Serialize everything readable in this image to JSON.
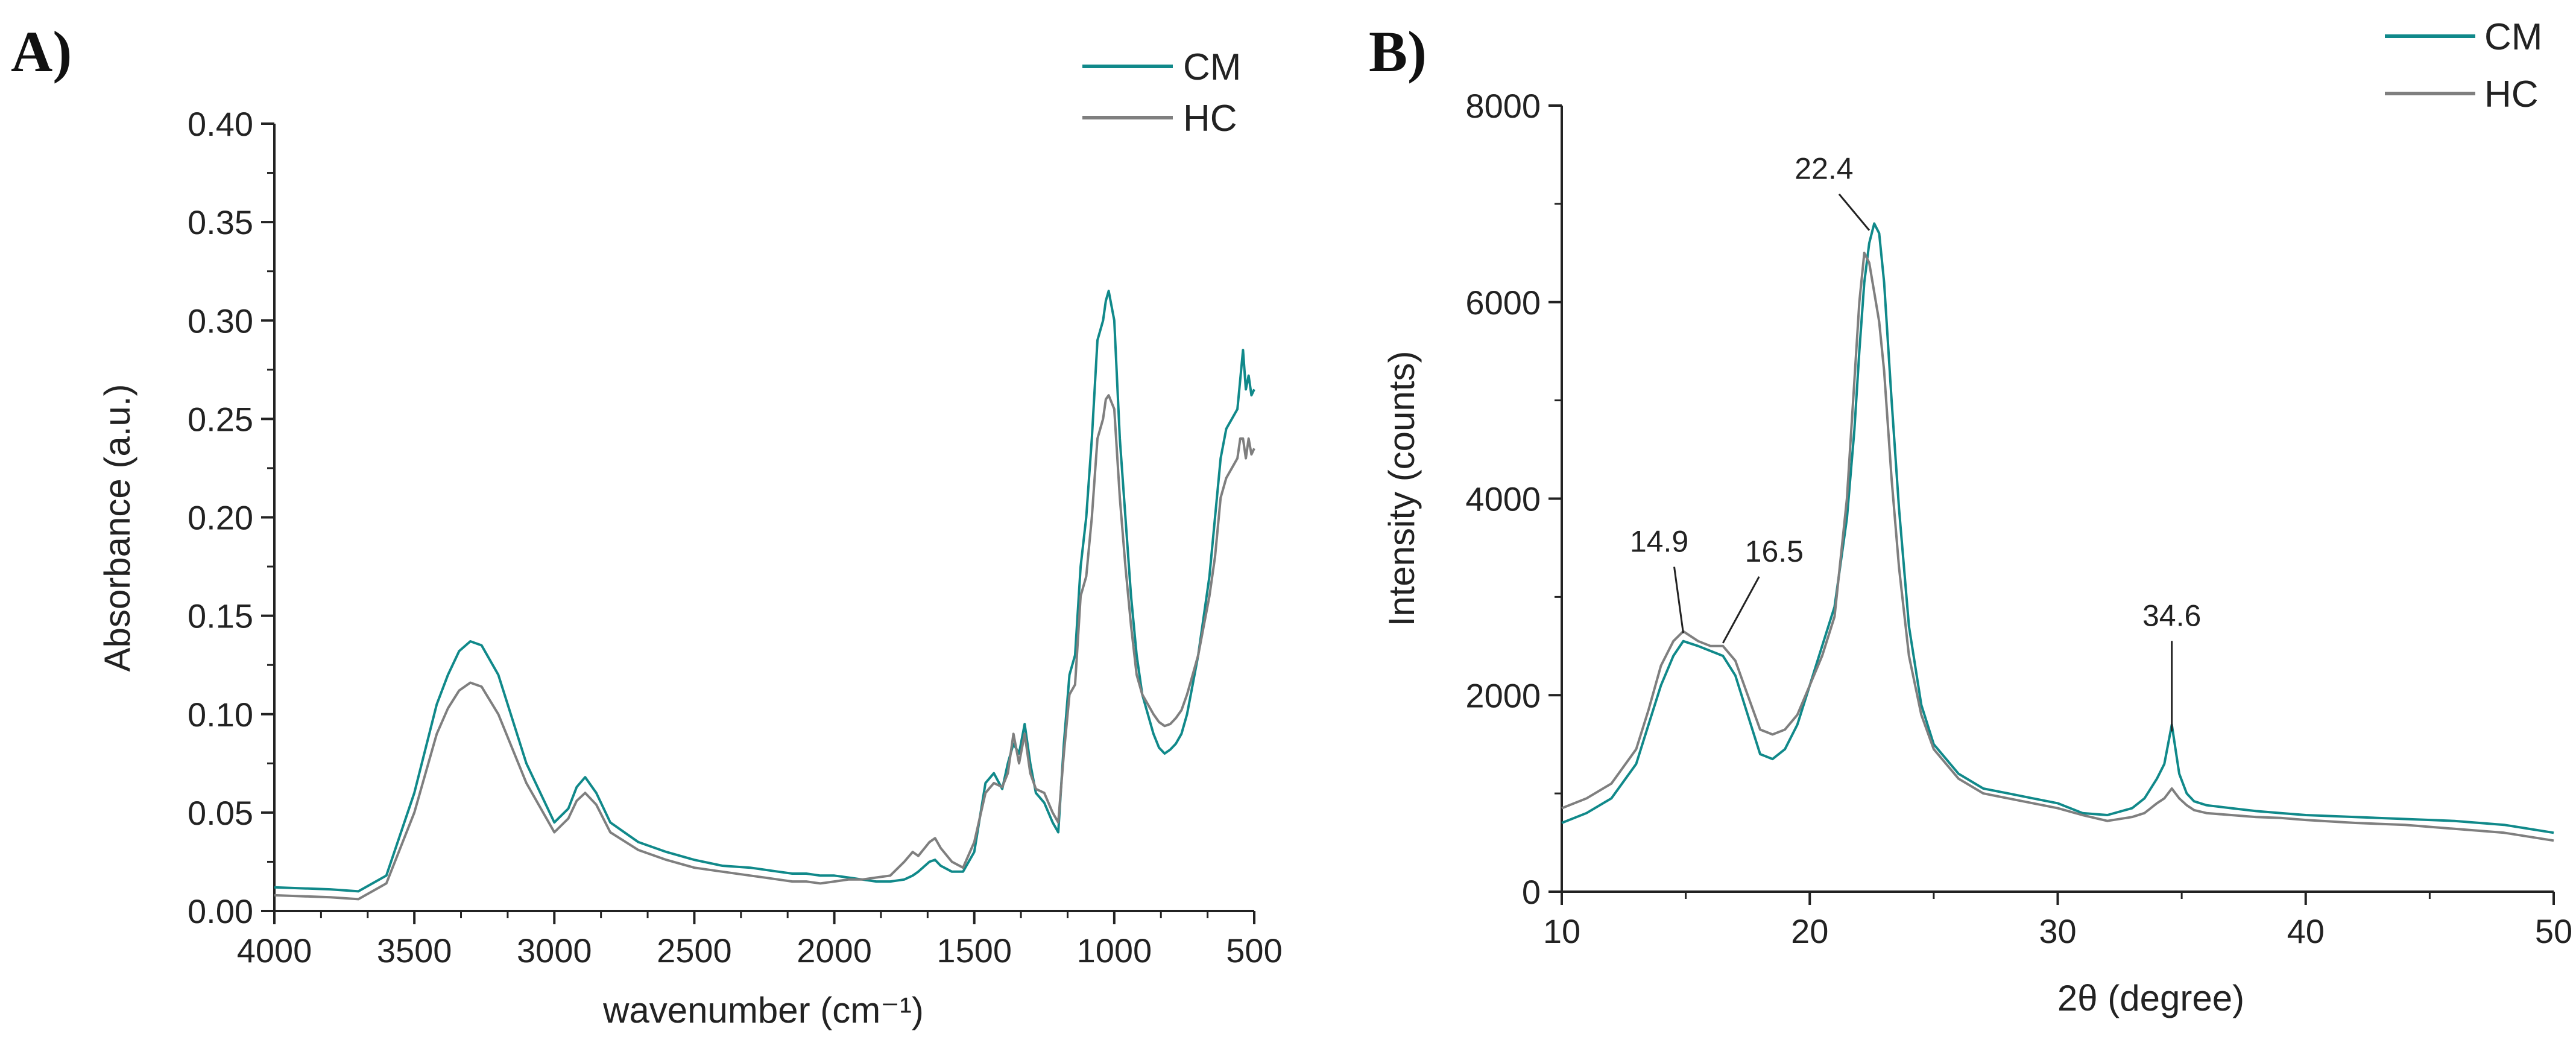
{
  "figure": {
    "panels": [
      "A)",
      "B)"
    ]
  },
  "colors": {
    "CM": "#10898a",
    "HC": "#7f7f7f",
    "axis": "#222222"
  },
  "chart_data": [
    {
      "type": "line",
      "panel_label": "A)",
      "title": "",
      "xlabel": "wavenumber (cm⁻¹)",
      "ylabel": "Absorbance (a.u.)",
      "xlim": [
        4000,
        500
      ],
      "ylim": [
        0,
        0.4
      ],
      "x_reversed": true,
      "xticks": [
        4000,
        3500,
        3000,
        2500,
        2000,
        1500,
        1000,
        500
      ],
      "xtick_labels": [
        "4000",
        "3500",
        "3000",
        "2500",
        "2000",
        "1500",
        "1000",
        "500"
      ],
      "yticks": [
        0,
        0.05,
        0.1,
        0.15,
        0.2,
        0.25,
        0.3,
        0.35,
        0.4
      ],
      "ytick_labels": [
        "0.00",
        "0.05",
        "0.10",
        "0.15",
        "0.20",
        "0.25",
        "0.30",
        "0.35",
        "0.40"
      ],
      "legend": {
        "position": "top-right",
        "entries": [
          "CM",
          "HC"
        ]
      },
      "series": [
        {
          "name": "CM",
          "x": [
            4000,
            3800,
            3700,
            3600,
            3500,
            3420,
            3380,
            3340,
            3300,
            3260,
            3200,
            3100,
            3000,
            2950,
            2920,
            2890,
            2850,
            2800,
            2700,
            2600,
            2500,
            2400,
            2300,
            2200,
            2150,
            2100,
            2050,
            2000,
            1950,
            1900,
            1850,
            1800,
            1750,
            1720,
            1700,
            1660,
            1640,
            1620,
            1580,
            1540,
            1500,
            1460,
            1430,
            1400,
            1380,
            1360,
            1340,
            1320,
            1300,
            1280,
            1250,
            1220,
            1200,
            1180,
            1160,
            1140,
            1120,
            1100,
            1080,
            1060,
            1040,
            1030,
            1020,
            1000,
            980,
            960,
            940,
            920,
            900,
            880,
            860,
            840,
            820,
            800,
            780,
            760,
            740,
            720,
            700,
            680,
            660,
            640,
            620,
            600,
            580,
            560,
            550,
            540,
            530,
            520,
            510,
            500
          ],
          "y": [
            0.012,
            0.011,
            0.01,
            0.018,
            0.06,
            0.105,
            0.12,
            0.132,
            0.137,
            0.135,
            0.12,
            0.075,
            0.045,
            0.052,
            0.063,
            0.068,
            0.06,
            0.045,
            0.035,
            0.03,
            0.026,
            0.023,
            0.022,
            0.02,
            0.019,
            0.019,
            0.018,
            0.018,
            0.017,
            0.016,
            0.015,
            0.015,
            0.016,
            0.018,
            0.02,
            0.025,
            0.026,
            0.023,
            0.02,
            0.02,
            0.03,
            0.065,
            0.07,
            0.062,
            0.075,
            0.085,
            0.08,
            0.095,
            0.075,
            0.06,
            0.055,
            0.045,
            0.04,
            0.085,
            0.12,
            0.13,
            0.175,
            0.2,
            0.24,
            0.29,
            0.3,
            0.31,
            0.315,
            0.3,
            0.24,
            0.2,
            0.16,
            0.13,
            0.11,
            0.1,
            0.09,
            0.083,
            0.08,
            0.082,
            0.085,
            0.09,
            0.1,
            0.115,
            0.13,
            0.15,
            0.17,
            0.2,
            0.23,
            0.245,
            0.25,
            0.255,
            0.27,
            0.285,
            0.265,
            0.272,
            0.262,
            0.265
          ]
        },
        {
          "name": "HC",
          "x": [
            4000,
            3800,
            3700,
            3600,
            3500,
            3420,
            3380,
            3340,
            3300,
            3260,
            3200,
            3100,
            3000,
            2950,
            2920,
            2890,
            2850,
            2800,
            2700,
            2600,
            2500,
            2400,
            2300,
            2200,
            2150,
            2100,
            2050,
            2000,
            1950,
            1900,
            1850,
            1800,
            1750,
            1720,
            1700,
            1660,
            1640,
            1620,
            1580,
            1540,
            1500,
            1460,
            1430,
            1400,
            1380,
            1360,
            1340,
            1320,
            1300,
            1280,
            1250,
            1220,
            1200,
            1180,
            1160,
            1140,
            1120,
            1100,
            1080,
            1060,
            1040,
            1030,
            1020,
            1000,
            980,
            960,
            940,
            920,
            900,
            880,
            860,
            840,
            820,
            800,
            780,
            760,
            740,
            720,
            700,
            680,
            660,
            640,
            620,
            600,
            580,
            560,
            550,
            540,
            530,
            520,
            510,
            500
          ],
          "y": [
            0.008,
            0.007,
            0.006,
            0.014,
            0.05,
            0.09,
            0.103,
            0.112,
            0.116,
            0.114,
            0.1,
            0.065,
            0.04,
            0.047,
            0.056,
            0.06,
            0.054,
            0.04,
            0.031,
            0.026,
            0.022,
            0.02,
            0.018,
            0.016,
            0.015,
            0.015,
            0.014,
            0.015,
            0.016,
            0.016,
            0.017,
            0.018,
            0.025,
            0.03,
            0.028,
            0.035,
            0.037,
            0.032,
            0.025,
            0.022,
            0.035,
            0.06,
            0.065,
            0.063,
            0.07,
            0.09,
            0.075,
            0.09,
            0.07,
            0.062,
            0.06,
            0.05,
            0.045,
            0.08,
            0.11,
            0.115,
            0.16,
            0.17,
            0.2,
            0.24,
            0.25,
            0.26,
            0.262,
            0.255,
            0.21,
            0.175,
            0.145,
            0.12,
            0.11,
            0.105,
            0.1,
            0.096,
            0.094,
            0.095,
            0.098,
            0.102,
            0.11,
            0.12,
            0.13,
            0.145,
            0.16,
            0.18,
            0.21,
            0.22,
            0.225,
            0.23,
            0.24,
            0.24,
            0.23,
            0.24,
            0.232,
            0.235
          ]
        }
      ]
    },
    {
      "type": "line",
      "panel_label": "B)",
      "title": "",
      "xlabel": "2θ (degree)",
      "ylabel": "Intensity (counts)",
      "xlim": [
        10,
        50
      ],
      "ylim": [
        0,
        8000
      ],
      "x_reversed": false,
      "xticks": [
        10,
        20,
        30,
        40,
        50
      ],
      "xtick_labels": [
        "10",
        "20",
        "30",
        "40",
        "50"
      ],
      "yticks": [
        0,
        2000,
        4000,
        6000,
        8000
      ],
      "ytick_labels": [
        "0",
        "2000",
        "4000",
        "6000",
        "8000"
      ],
      "legend": {
        "position": "top-right",
        "entries": [
          "CM",
          "HC"
        ]
      },
      "annotations": [
        {
          "text": "14.9",
          "x": 14.9,
          "y": 2600
        },
        {
          "text": "16.5",
          "x": 16.5,
          "y": 2500
        },
        {
          "text": "22.4",
          "x": 22.4,
          "y": 6700
        },
        {
          "text": "34.6",
          "x": 34.6,
          "y": 1600
        }
      ],
      "series": [
        {
          "name": "CM",
          "x": [
            10,
            11,
            12,
            13,
            13.5,
            14,
            14.5,
            14.9,
            15.5,
            16,
            16.5,
            17,
            17.5,
            18,
            18.5,
            19,
            19.5,
            20,
            20.5,
            21,
            21.5,
            21.8,
            22,
            22.2,
            22.4,
            22.6,
            22.8,
            23,
            23.3,
            23.6,
            24,
            24.5,
            25,
            26,
            27,
            28,
            29,
            30,
            31,
            32,
            33,
            33.5,
            34,
            34.3,
            34.6,
            34.9,
            35.2,
            35.5,
            36,
            37,
            38,
            39,
            40,
            42,
            44,
            46,
            48,
            50
          ],
          "y": [
            700,
            800,
            950,
            1300,
            1700,
            2100,
            2400,
            2550,
            2500,
            2450,
            2400,
            2200,
            1800,
            1400,
            1350,
            1450,
            1700,
            2100,
            2500,
            2900,
            3800,
            4700,
            5500,
            6200,
            6600,
            6800,
            6700,
            6200,
            5000,
            3900,
            2700,
            1900,
            1500,
            1200,
            1050,
            1000,
            950,
            900,
            800,
            780,
            850,
            950,
            1150,
            1300,
            1700,
            1200,
            1000,
            920,
            880,
            850,
            820,
            800,
            780,
            760,
            740,
            720,
            680,
            600
          ]
        },
        {
          "name": "HC",
          "x": [
            10,
            11,
            12,
            13,
            13.5,
            14,
            14.5,
            14.9,
            15.5,
            16,
            16.5,
            17,
            17.5,
            18,
            18.5,
            19,
            19.5,
            20,
            20.5,
            21,
            21.5,
            21.8,
            22,
            22.2,
            22.4,
            22.6,
            22.8,
            23,
            23.3,
            23.6,
            24,
            24.5,
            25,
            26,
            27,
            28,
            29,
            30,
            31,
            32,
            33,
            33.5,
            34,
            34.3,
            34.6,
            34.9,
            35.2,
            35.5,
            36,
            37,
            38,
            39,
            40,
            42,
            44,
            46,
            48,
            50
          ],
          "y": [
            850,
            950,
            1100,
            1450,
            1850,
            2300,
            2550,
            2650,
            2550,
            2500,
            2500,
            2350,
            2000,
            1650,
            1600,
            1650,
            1800,
            2100,
            2400,
            2800,
            4000,
            5200,
            6000,
            6500,
            6400,
            6100,
            5800,
            5300,
            4200,
            3300,
            2400,
            1800,
            1450,
            1150,
            1000,
            950,
            900,
            850,
            780,
            720,
            760,
            800,
            900,
            950,
            1050,
            950,
            880,
            830,
            800,
            780,
            760,
            750,
            730,
            700,
            680,
            640,
            600,
            520
          ]
        }
      ]
    }
  ]
}
